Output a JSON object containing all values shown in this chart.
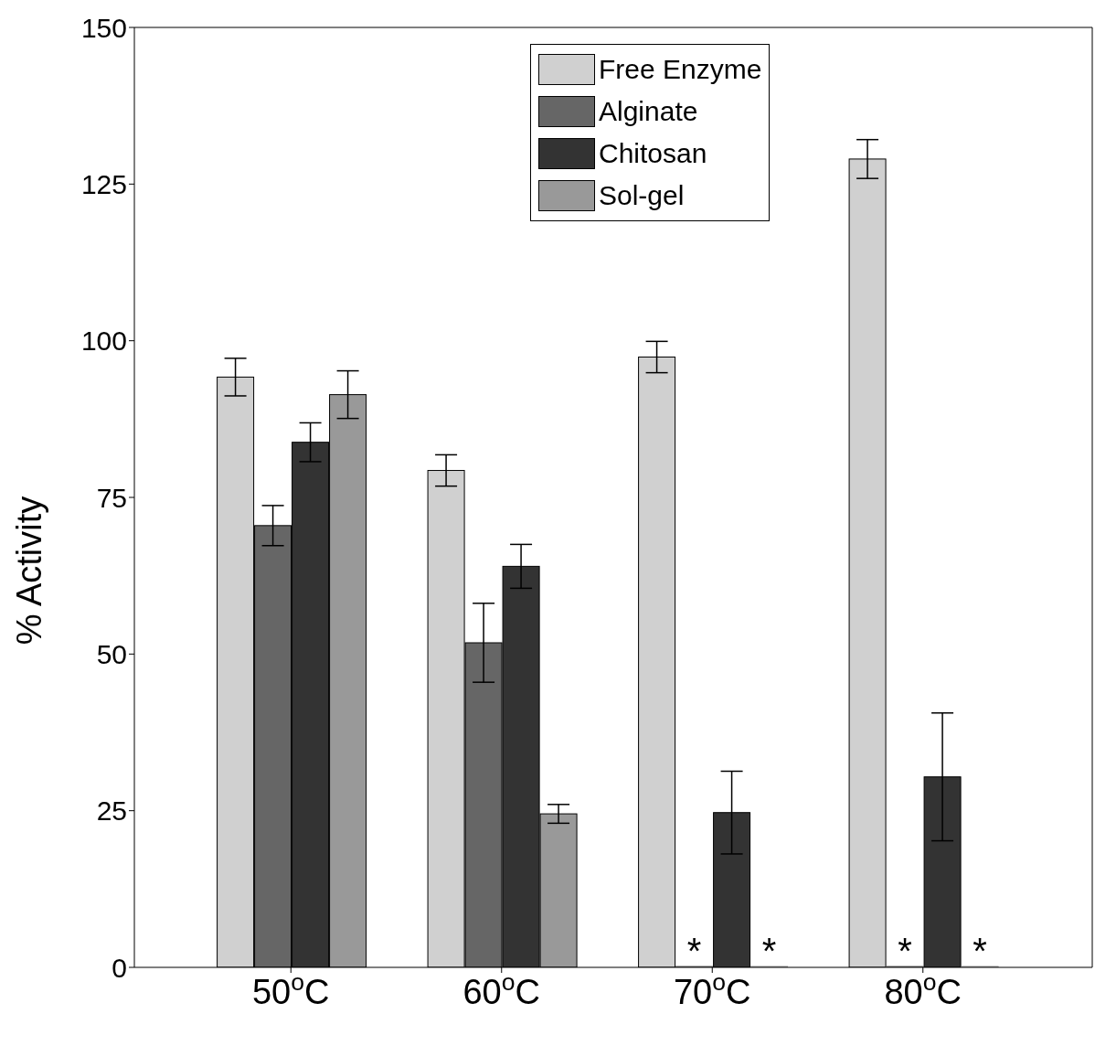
{
  "chart_data": {
    "type": "bar",
    "ylabel": "% Activity",
    "categories": [
      "50$^{o}$C",
      "60$^{o}$C",
      "70$^{o}$C",
      "80$^{o}$C"
    ],
    "ylim": [
      0,
      150
    ],
    "yticks": [
      0,
      25,
      50,
      75,
      100,
      125,
      150
    ],
    "grid": false,
    "legend": "top",
    "series": [
      {
        "name": "Free Enzyme",
        "color": "#d0d0d0",
        "values": [
          94.2,
          79.3,
          97.4,
          129
        ],
        "errors": [
          3,
          2.5,
          2.5,
          3.1
        ]
      },
      {
        "name": "Alginate",
        "color": "#666666",
        "values": [
          70.5,
          51.8,
          0,
          0
        ],
        "errors": [
          3.2,
          6.3,
          null,
          null
        ],
        "value_labels": [
          null,
          null,
          "*",
          "*"
        ]
      },
      {
        "name": "Chitosan",
        "color": "#333333",
        "values": [
          83.8,
          64,
          24.7,
          30.4
        ],
        "errors": [
          3.1,
          3.5,
          6.6,
          10.2
        ]
      },
      {
        "name": "Sol-gel",
        "color": "#999999",
        "values": [
          91.4,
          24.5,
          0,
          0
        ],
        "errors": [
          3.8,
          1.5,
          null,
          null
        ],
        "value_labels": [
          null,
          null,
          "*",
          "*"
        ]
      }
    ]
  }
}
